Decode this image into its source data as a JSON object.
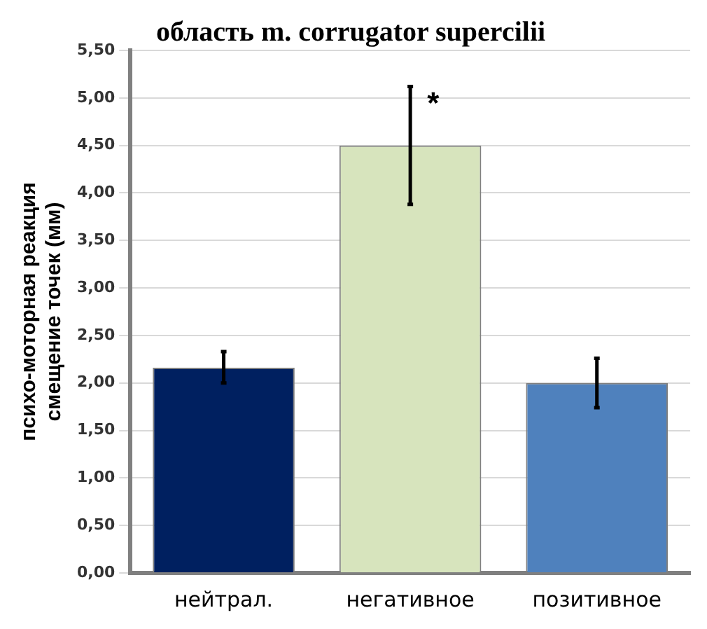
{
  "chart_data": {
    "type": "bar",
    "title": "область m. corrugator supercilii",
    "ylabel": "психо-моторная реакция\nсмещение точек (мм)",
    "categories": [
      "нейтрал.",
      "негативное",
      "позитивное"
    ],
    "values": [
      2.16,
      4.5,
      2.0
    ],
    "colors": [
      "#002060",
      "#d7e4bd",
      "#4f81bd"
    ],
    "errors": [
      [
        2.0,
        2.33
      ],
      [
        3.88,
        5.12
      ],
      [
        1.74,
        2.26
      ]
    ],
    "ylim": [
      0,
      5.5
    ],
    "yticks": [
      {
        "value": 0,
        "label": "0,00"
      },
      {
        "value": 0.5,
        "label": "0,50"
      },
      {
        "value": 1,
        "label": "1,00"
      },
      {
        "value": 1.5,
        "label": "1,50"
      },
      {
        "value": 2,
        "label": "2,00"
      },
      {
        "value": 2.5,
        "label": "2,50"
      },
      {
        "value": 3,
        "label": "3,00"
      },
      {
        "value": 3.5,
        "label": "3,50"
      },
      {
        "value": 4,
        "label": "4,00"
      },
      {
        "value": 4.5,
        "label": "4,50"
      },
      {
        "value": 5,
        "label": "5,00"
      },
      {
        "value": 5.5,
        "label": "5,50"
      }
    ],
    "annotations": [
      {
        "text": "*",
        "x": "негативное",
        "y": 5.12
      }
    ],
    "grid": "y"
  }
}
